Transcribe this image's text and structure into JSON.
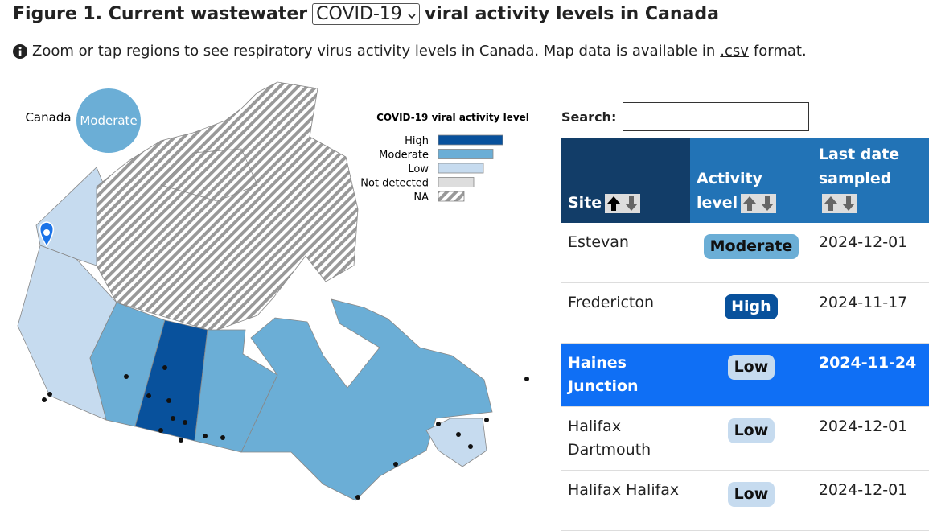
{
  "header": {
    "title_prefix": "Figure 1. Current wastewater",
    "select": "COVID-19",
    "title_suffix": "viral activity levels in Canada",
    "info": "Zoom or tap regions to see respiratory virus activity levels in Canada. Map data is available in",
    "link": ".csv",
    "info_end": "format."
  },
  "map": {
    "national_label": "Canada",
    "national_level": "Moderate",
    "legend": {
      "title": "COVID-19 viral activity level",
      "items": [
        "High",
        "Moderate",
        "Low",
        "Not detected",
        "NA"
      ]
    }
  },
  "search": {
    "label": "Search:"
  },
  "table": {
    "columns": [
      "Site",
      "Activity level",
      "Last date sampled"
    ],
    "rows": [
      [
        "Estevan",
        "Moderate",
        "2024-12-01"
      ],
      [
        "Fredericton",
        "High",
        "2024-11-17"
      ],
      [
        "Haines Junction",
        "Low",
        "2024-11-24"
      ],
      [
        "Halifax Dartmouth",
        "Low",
        "2024-12-01"
      ],
      [
        "Halifax Halifax",
        "Low",
        "2024-12-01"
      ]
    ]
  }
}
